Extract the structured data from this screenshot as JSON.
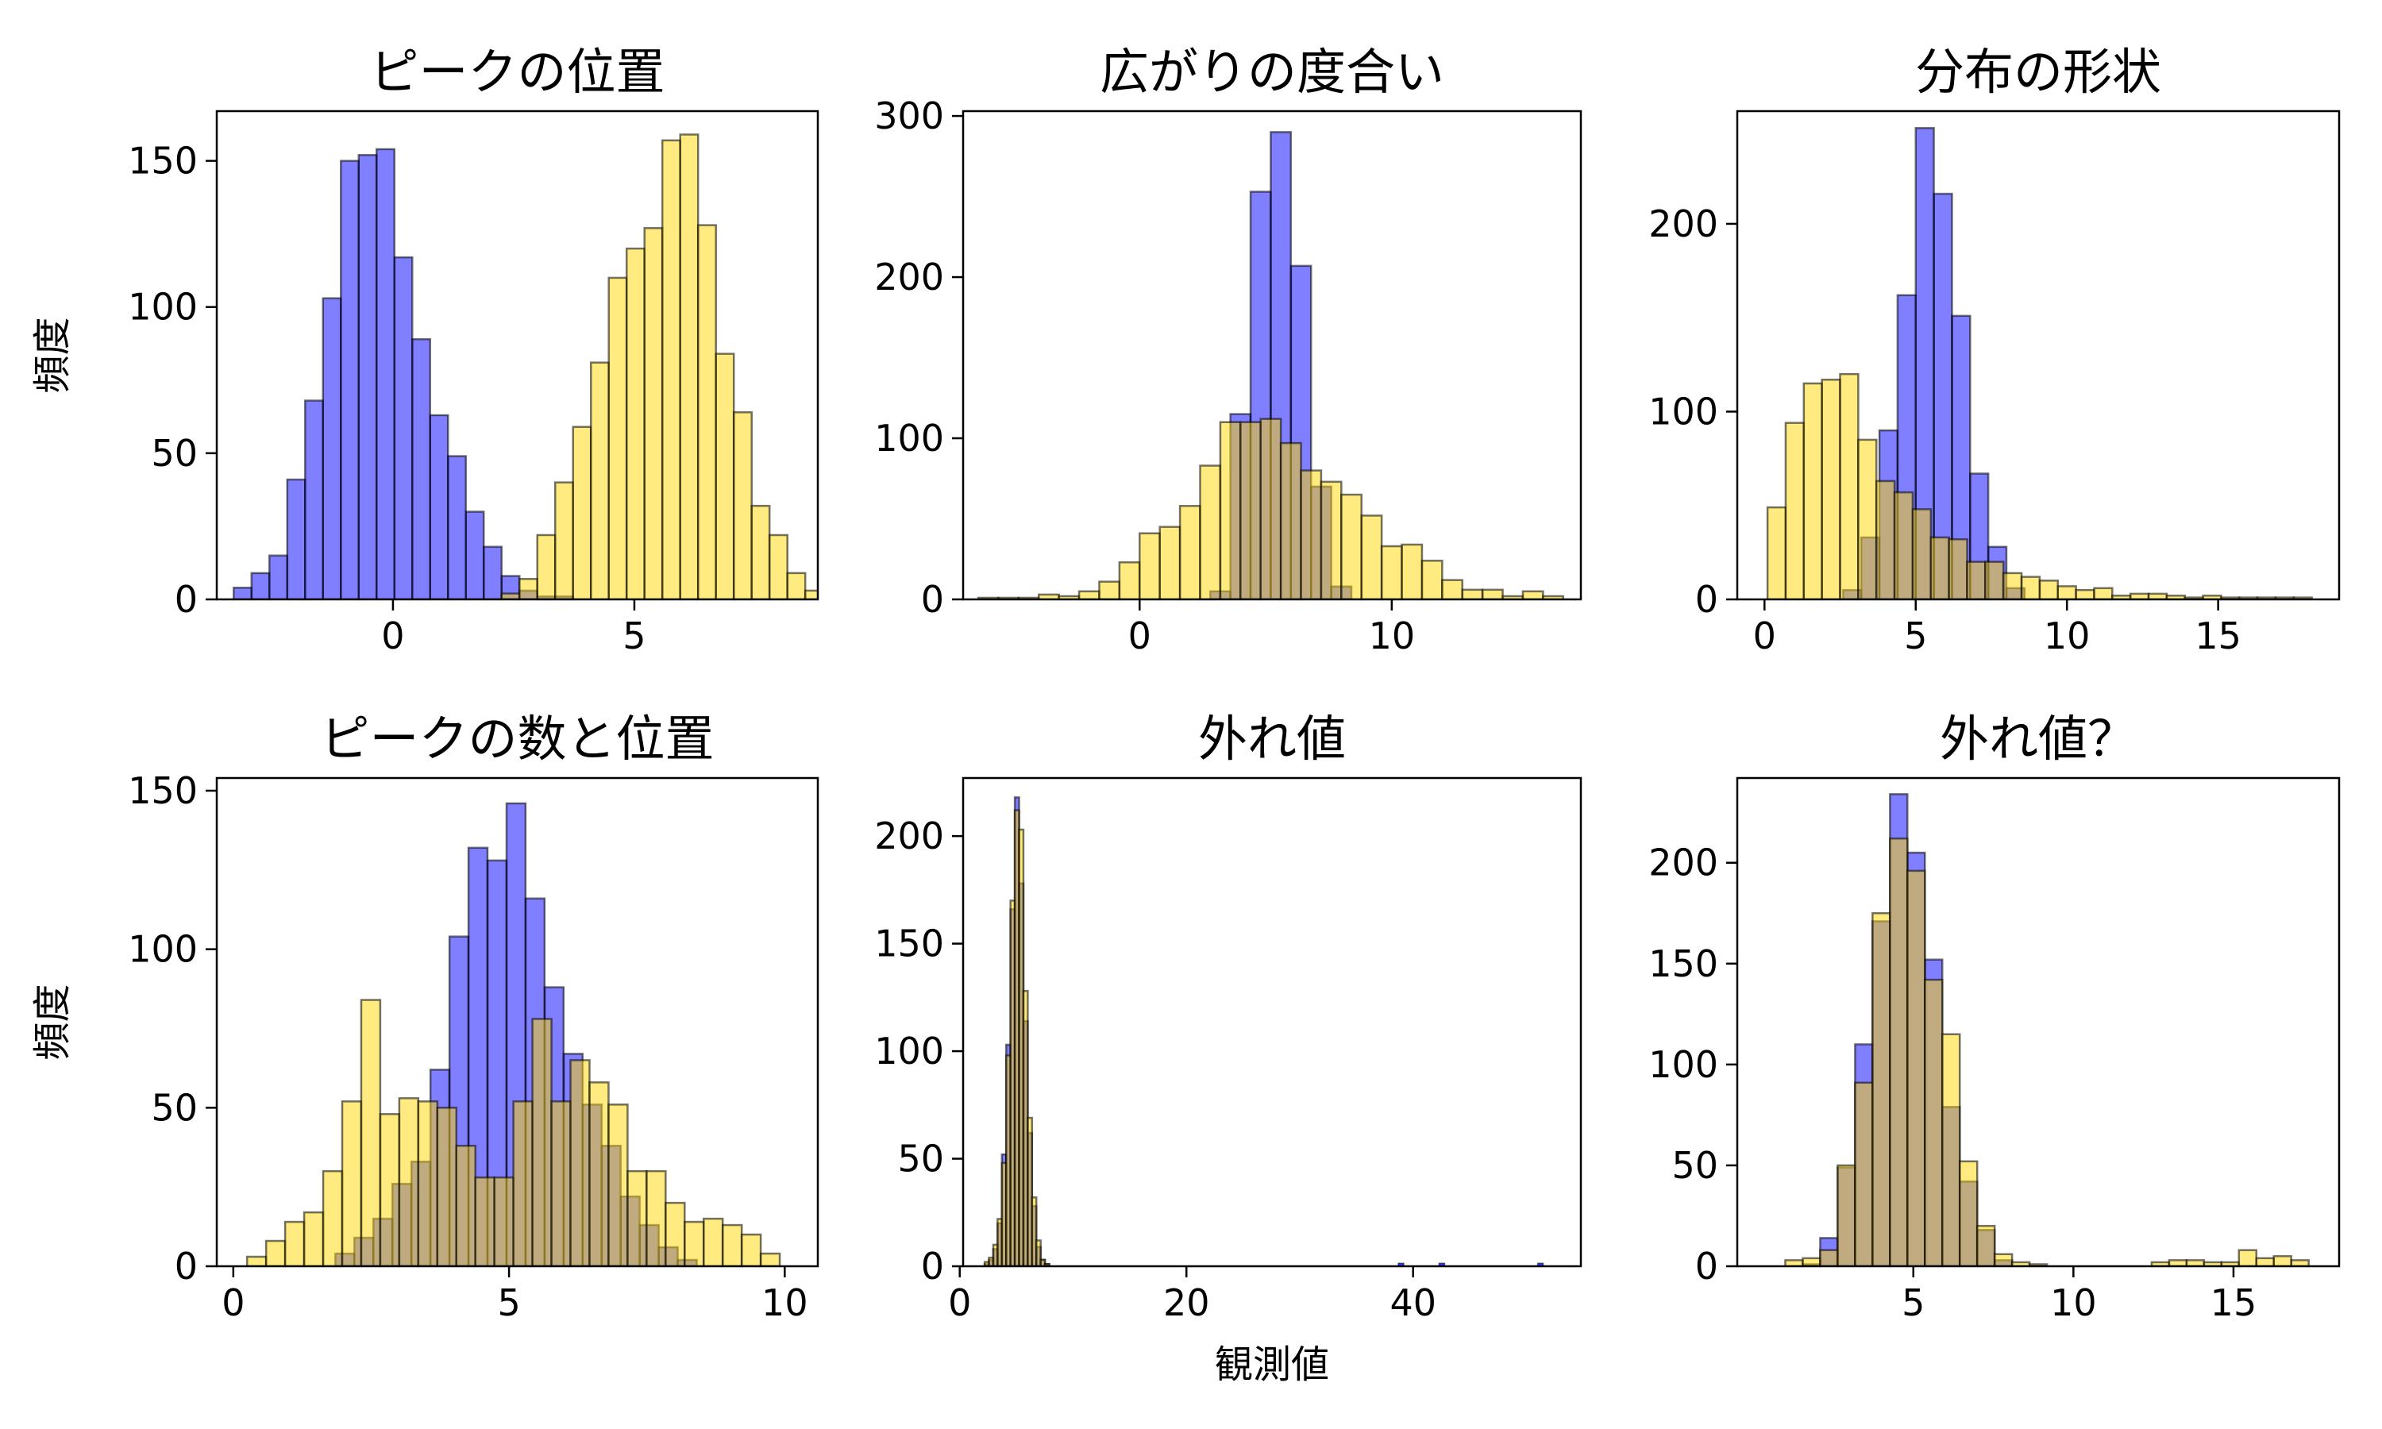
{
  "colors": {
    "series_a": "#0000ff",
    "series_b": "#ffd700",
    "edge": "#000000",
    "bar_alpha": 0.5
  },
  "figure": {
    "shared_ylabel": "頻度",
    "shared_xlabel": "観測値"
  },
  "chart_data": [
    {
      "type": "histogram",
      "title": "ピークの位置",
      "ylabel": "頻度",
      "xlabel": "",
      "xlim": [
        -3.65,
        8.8
      ],
      "ylim": [
        0,
        167
      ],
      "xticks": [
        0,
        5
      ],
      "yticks": [
        0,
        50,
        100,
        150
      ],
      "bin_width": 0.37,
      "series": [
        {
          "color": "#0000ff",
          "bin_start": -3.3,
          "counts": [
            4,
            9,
            15,
            41,
            68,
            103,
            150,
            152,
            154,
            117,
            89,
            63,
            49,
            30,
            18,
            8,
            3,
            1,
            1,
            0,
            0,
            0,
            0,
            0,
            0,
            0,
            0,
            0,
            0,
            0,
            0
          ]
        },
        {
          "color": "#ffd700",
          "bin_start": 2.25,
          "counts": [
            2,
            7,
            22,
            40,
            59,
            81,
            110,
            120,
            127,
            157,
            159,
            128,
            84,
            64,
            32,
            22,
            9,
            3
          ]
        }
      ]
    },
    {
      "type": "histogram",
      "title": "広がりの度合い",
      "ylabel": "",
      "xlabel": "",
      "xlim": [
        -7,
        17.5
      ],
      "ylim": [
        0,
        303
      ],
      "xticks": [
        0,
        10
      ],
      "yticks": [
        0,
        100,
        200,
        300
      ],
      "bin_width": 0.8,
      "series": [
        {
          "color": "#0000ff",
          "bin_start": 2.8,
          "counts": [
            5,
            115,
            253,
            290,
            207,
            70,
            8
          ]
        },
        {
          "color": "#ffd700",
          "bin_start": -6.4,
          "counts": [
            1,
            1,
            1,
            3,
            2,
            5,
            11,
            23,
            41,
            45,
            58,
            83,
            110,
            110,
            112,
            97,
            80,
            73,
            65,
            52,
            33,
            34,
            24,
            12,
            6,
            6,
            2,
            5,
            2
          ]
        }
      ]
    },
    {
      "type": "histogram",
      "title": "分布の形状",
      "ylabel": "",
      "xlabel": "",
      "xlim": [
        -0.9,
        19
      ],
      "ylim": [
        0,
        260
      ],
      "xticks": [
        0,
        5,
        10,
        15
      ],
      "yticks": [
        0,
        100,
        200
      ],
      "bin_width": 0.6,
      "series": [
        {
          "color": "#0000ff",
          "bin_start": 2.6,
          "counts": [
            5,
            33,
            90,
            162,
            251,
            216,
            151,
            67,
            28,
            6
          ]
        },
        {
          "color": "#ffd700",
          "bin_start": 0.1,
          "counts": [
            49,
            94,
            115,
            117,
            120,
            85,
            63,
            57,
            48,
            33,
            32,
            20,
            20,
            14,
            12,
            10,
            7,
            5,
            6,
            2,
            3,
            3,
            2,
            1,
            2,
            1,
            1,
            1,
            1,
            1
          ]
        }
      ]
    },
    {
      "type": "histogram",
      "title": "ピークの数と位置",
      "ylabel": "頻度",
      "xlabel": "",
      "xlim": [
        -0.3,
        10.6
      ],
      "ylim": [
        0,
        154
      ],
      "xticks": [
        0,
        5,
        10
      ],
      "yticks": [
        0,
        50,
        100,
        150
      ],
      "bin_width": 0.345,
      "series": [
        {
          "color": "#0000ff",
          "bin_start": 1.85,
          "counts": [
            4,
            9,
            15,
            26,
            33,
            62,
            104,
            132,
            128,
            146,
            116,
            88,
            67,
            51,
            38,
            22,
            13,
            6,
            2
          ]
        },
        {
          "color": "#ffd700",
          "bin_start": 0.25,
          "counts": [
            3,
            8,
            14,
            17,
            30,
            52,
            84,
            48,
            53,
            52,
            50,
            38,
            28,
            28,
            52,
            78,
            52,
            65,
            58,
            51,
            30,
            30,
            20,
            14,
            15,
            13,
            10,
            4
          ]
        }
      ]
    },
    {
      "type": "histogram",
      "title": "外れ値",
      "ylabel": "",
      "xlabel": "観測値",
      "xlim": [
        0.3,
        54.8
      ],
      "ylim": [
        0,
        227
      ],
      "xticks": [
        0,
        20,
        40
      ],
      "yticks": [
        0,
        50,
        100,
        150,
        200
      ],
      "bin_width": 0.38,
      "series": [
        {
          "color": "#0000ff",
          "bin_start": 2.2,
          "counts": [
            1,
            3,
            8,
            20,
            52,
            103,
            166,
            218,
            178,
            114,
            62,
            28,
            9,
            3,
            1
          ],
          "outliers": [
            38.9,
            42.5,
            51.2
          ]
        },
        {
          "color": "#ffd700",
          "bin_start": 2.2,
          "counts": [
            2,
            4,
            10,
            22,
            48,
            98,
            170,
            212,
            203,
            128,
            69,
            32,
            12,
            3,
            1
          ]
        }
      ]
    },
    {
      "type": "histogram",
      "title": "外れ値？",
      "ylabel": "",
      "xlabel": "",
      "xlim": [
        -0.5,
        18.3
      ],
      "ylim": [
        0,
        242
      ],
      "xticks": [
        5,
        10,
        15
      ],
      "yticks": [
        0,
        50,
        100,
        150,
        200
      ],
      "bin_width": 0.545,
      "series": [
        {
          "color": "#0000ff",
          "bin_start": 1.0,
          "counts": [
            0,
            1,
            14,
            49,
            110,
            171,
            234,
            205,
            152,
            79,
            42,
            18,
            3,
            0,
            0,
            0,
            0,
            0,
            0,
            0,
            0,
            0,
            0,
            0,
            0,
            0,
            0,
            0,
            0,
            0
          ]
        },
        {
          "color": "#ffd700",
          "bin_start": 1.0,
          "counts": [
            3,
            4,
            8,
            50,
            91,
            175,
            212,
            196,
            142,
            115,
            52,
            20,
            6,
            2,
            1,
            0,
            0,
            0,
            0,
            0,
            0,
            2,
            3,
            3,
            2,
            2,
            8,
            4,
            5,
            3
          ]
        }
      ]
    }
  ]
}
